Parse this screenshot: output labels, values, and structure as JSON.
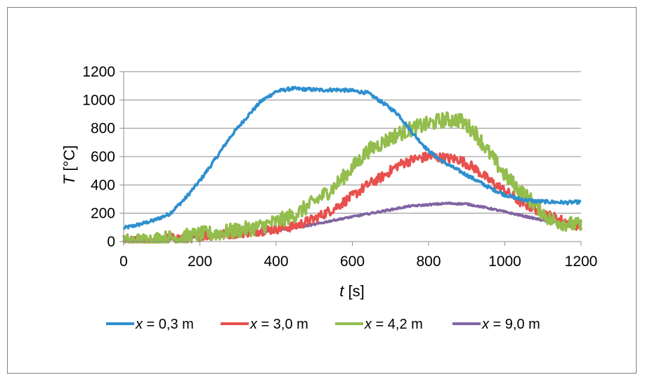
{
  "chart_data": {
    "type": "line",
    "title": "",
    "xlabel": {
      "var": "t",
      "unit": " [s]"
    },
    "ylabel": {
      "var": "T",
      "unit": " [°C]"
    },
    "xlim": [
      0,
      1200
    ],
    "ylim": [
      0,
      1200
    ],
    "xticks": [
      "0",
      "200",
      "400",
      "600",
      "800",
      "1000",
      "1200"
    ],
    "yticks": [
      "0",
      "200",
      "400",
      "600",
      "800",
      "1000",
      "1200"
    ],
    "grid": "horizontal",
    "legend_position": "bottom",
    "series": [
      {
        "name": "x = 0,3 m",
        "name_var": "x",
        "name_rest": " = 0,3 m",
        "color": "#2e8fcf",
        "noise": 12,
        "x": [
          0,
          40,
          80,
          120,
          160,
          200,
          240,
          280,
          320,
          360,
          400,
          440,
          480,
          520,
          560,
          600,
          640,
          680,
          720,
          760,
          800,
          840,
          880,
          920,
          960,
          1000,
          1040,
          1080,
          1120,
          1160,
          1200
        ],
        "y": [
          95,
          120,
          150,
          195,
          300,
          430,
          580,
          740,
          870,
          990,
          1060,
          1080,
          1075,
          1070,
          1072,
          1065,
          1050,
          980,
          900,
          760,
          640,
          560,
          500,
          440,
          380,
          330,
          300,
          285,
          280,
          275,
          280
        ]
      },
      {
        "name": "x = 3,0 m",
        "name_var": "x",
        "name_rest": " = 3,0 m",
        "color": "#e8504d",
        "noise": 35,
        "x": [
          0,
          50,
          100,
          150,
          200,
          250,
          300,
          350,
          400,
          450,
          500,
          550,
          600,
          640,
          680,
          720,
          760,
          800,
          840,
          880,
          920,
          960,
          1000,
          1040,
          1080,
          1120,
          1160,
          1200
        ],
        "y": [
          0,
          5,
          15,
          25,
          40,
          50,
          60,
          75,
          90,
          110,
          160,
          230,
          320,
          400,
          460,
          540,
          580,
          600,
          590,
          580,
          520,
          430,
          360,
          280,
          230,
          180,
          140,
          110
        ]
      },
      {
        "name": "x = 4,2 m",
        "name_var": "x",
        "name_rest": " = 4,2 m",
        "color": "#93bd4c",
        "noise": 55,
        "x": [
          0,
          50,
          100,
          150,
          200,
          250,
          300,
          350,
          400,
          450,
          500,
          550,
          600,
          640,
          680,
          720,
          760,
          800,
          840,
          880,
          920,
          960,
          1000,
          1040,
          1080,
          1120,
          1160,
          1200
        ],
        "y": [
          0,
          5,
          20,
          30,
          50,
          60,
          80,
          100,
          140,
          190,
          280,
          380,
          520,
          640,
          700,
          760,
          800,
          830,
          860,
          860,
          780,
          620,
          470,
          360,
          260,
          150,
          130,
          110
        ]
      },
      {
        "name": "x = 9,0 m",
        "name_var": "x",
        "name_rest": " = 9,0 m",
        "color": "#8064a2",
        "noise": 6,
        "x": [
          0,
          50,
          100,
          150,
          200,
          250,
          300,
          350,
          400,
          450,
          500,
          550,
          600,
          650,
          700,
          750,
          800,
          850,
          900,
          950,
          1000,
          1050,
          1100,
          1150,
          1200
        ],
        "y": [
          0,
          5,
          15,
          25,
          35,
          45,
          55,
          65,
          80,
          100,
          120,
          150,
          175,
          200,
          225,
          250,
          260,
          270,
          265,
          240,
          210,
          180,
          150,
          130,
          110
        ]
      }
    ]
  }
}
